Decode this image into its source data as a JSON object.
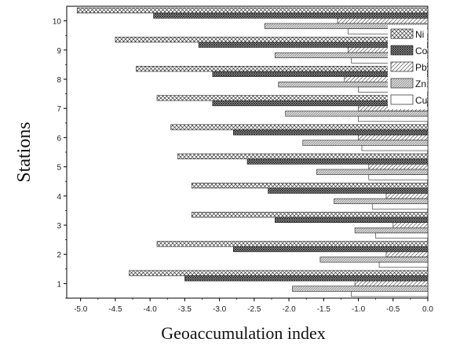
{
  "chart_data": {
    "type": "bar",
    "orientation": "horizontal",
    "xlabel": "Geoaccumulation index",
    "ylabel": "Stations",
    "xlim": [
      -5.2,
      0.0
    ],
    "xticks": [
      "-5.0",
      "-4.5",
      "-4.0",
      "-3.5",
      "-3.0",
      "-2.5",
      "-2.0",
      "-1.5",
      "-1.0",
      "-0.5",
      "0.0"
    ],
    "categories": [
      "1",
      "2",
      "3",
      "4",
      "5",
      "6",
      "7",
      "8",
      "9",
      "10"
    ],
    "legend_position": "top-right",
    "series": [
      {
        "name": "Ni",
        "pattern": "crosshatch",
        "values": [
          -4.3,
          -3.9,
          -3.4,
          -3.4,
          -3.6,
          -3.7,
          -3.9,
          -4.2,
          -4.5,
          -5.05
        ]
      },
      {
        "name": "Co",
        "pattern": "dense-crosshatch",
        "values": [
          -3.5,
          -2.8,
          -2.2,
          -2.3,
          -2.6,
          -2.8,
          -3.1,
          -3.1,
          -3.3,
          -3.95
        ]
      },
      {
        "name": "Pb",
        "pattern": "diagonal",
        "values": [
          -1.05,
          -0.6,
          -0.5,
          -0.6,
          -0.85,
          -1.0,
          -1.0,
          -1.2,
          -1.15,
          -1.3
        ]
      },
      {
        "name": "Zn",
        "pattern": "dense-diagonal",
        "values": [
          -1.95,
          -1.55,
          -1.05,
          -1.35,
          -1.6,
          -1.8,
          -2.05,
          -2.15,
          -2.2,
          -2.35
        ]
      },
      {
        "name": "Cu",
        "pattern": "none",
        "values": [
          -1.1,
          -0.7,
          -0.75,
          -0.8,
          -0.85,
          -0.95,
          -1.0,
          -1.0,
          -1.1,
          -1.15
        ]
      }
    ]
  }
}
